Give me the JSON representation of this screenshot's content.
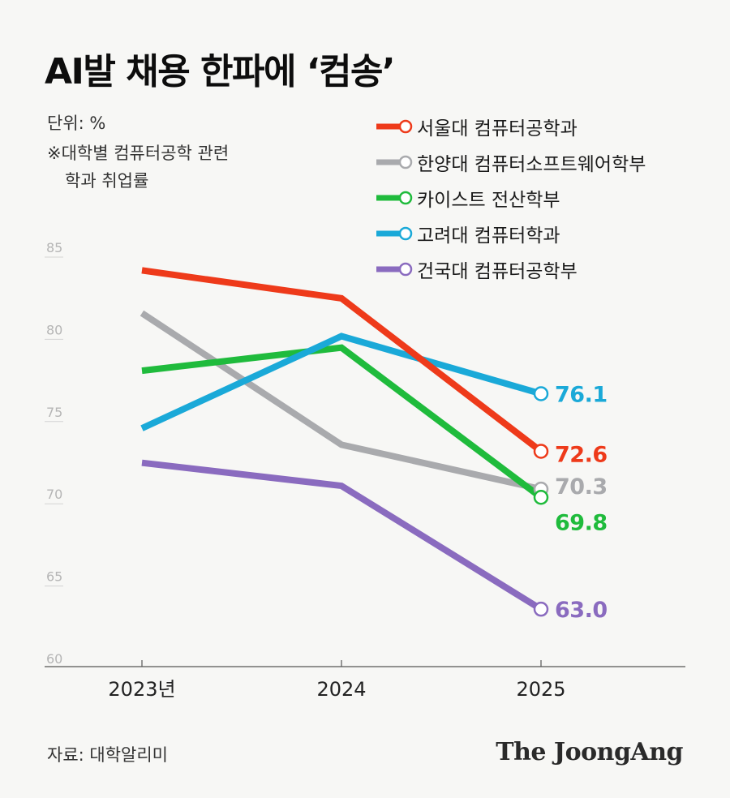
{
  "header": {
    "title": "AI발 채용 한파에 ‘컴송’",
    "unit": "단위: %",
    "note_line1": "※대학별 컴퓨터공학 관련",
    "note_line2": "학과 취업률"
  },
  "footer": {
    "source": "자료: 대학알리미",
    "brand": "The JoongAng"
  },
  "chart_data": {
    "type": "line",
    "x": [
      "2023년",
      "2024",
      "2025"
    ],
    "ylim": [
      60,
      85
    ],
    "yticks": [
      "85",
      "80",
      "75",
      "70",
      "65",
      "60"
    ],
    "legend_position": "top-right",
    "grid": false,
    "series": [
      {
        "name": "서울대 컴퓨터공학과",
        "color": "#ee3a1a",
        "values": [
          83.6,
          81.9,
          72.6
        ],
        "end_label": "72.6"
      },
      {
        "name": "한양대 컴퓨터소프트웨어학부",
        "color": "#a9aaad",
        "values": [
          81.0,
          73.0,
          70.3
        ],
        "end_label": "70.3"
      },
      {
        "name": "카이스트 전산학부",
        "color": "#1fbb3c",
        "values": [
          77.5,
          78.9,
          69.8
        ],
        "end_label": "69.8"
      },
      {
        "name": "고려대 컴퓨터학과",
        "color": "#1aa9d8",
        "values": [
          74.0,
          79.6,
          76.1
        ],
        "end_label": "76.1"
      },
      {
        "name": "건국대 컴퓨터공학부",
        "color": "#8a6bbf",
        "values": [
          71.9,
          70.5,
          63.0
        ],
        "end_label": "63.0"
      }
    ]
  }
}
